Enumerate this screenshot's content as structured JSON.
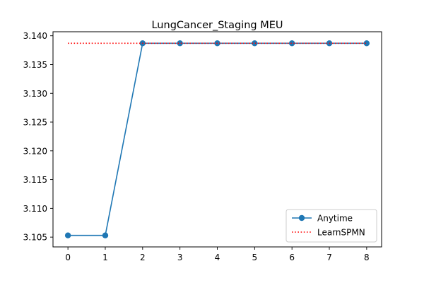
{
  "chart_data": {
    "type": "line",
    "title": "LungCancer_Staging MEU",
    "xlabel": "",
    "ylabel": "",
    "x": [
      0,
      1,
      2,
      3,
      4,
      5,
      6,
      7,
      8
    ],
    "xticks": [
      "0",
      "1",
      "2",
      "3",
      "4",
      "5",
      "6",
      "7",
      "8"
    ],
    "xlim": [
      -0.4,
      8.4
    ],
    "yticks": [
      "3.105",
      "3.110",
      "3.115",
      "3.120",
      "3.125",
      "3.130",
      "3.135",
      "3.140"
    ],
    "ylim": [
      3.1033,
      3.1407
    ],
    "grid": false,
    "legend_position": "lower-right",
    "series": [
      {
        "name": "Anytime",
        "style": "solid-with-circle-markers",
        "color": "#1f77b4",
        "values": [
          3.1053,
          3.1053,
          3.1387,
          3.1387,
          3.1387,
          3.1387,
          3.1387,
          3.1387,
          3.1387
        ]
      },
      {
        "name": "LearnSPMN",
        "style": "dotted",
        "color": "#ff0000",
        "values": [
          3.1387,
          3.1387,
          3.1387,
          3.1387,
          3.1387,
          3.1387,
          3.1387,
          3.1387,
          3.1387
        ]
      }
    ]
  }
}
